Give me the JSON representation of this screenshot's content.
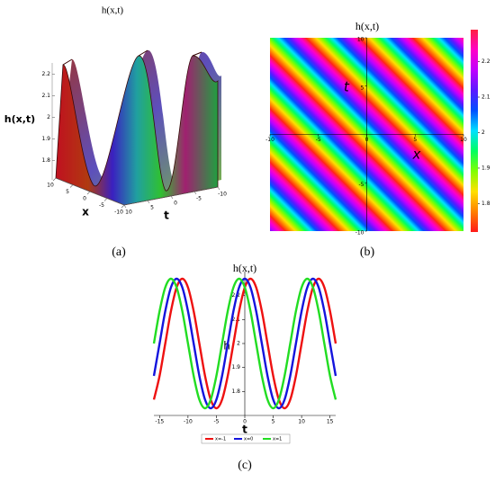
{
  "panel_labels": [
    "(a)",
    "(b)",
    "(c)"
  ],
  "chart_data": [
    {
      "type": "surface3d",
      "title": "h(x,t)",
      "xlabel": "x",
      "ylabel": "t",
      "zlabel": "h(x,t)",
      "xlim": [
        -10,
        10
      ],
      "ylim": [
        -10,
        10
      ],
      "zlim": [
        1.72,
        2.28
      ],
      "xticks": [
        10,
        5,
        0,
        -5,
        -10
      ],
      "yticks": [
        10,
        5,
        0,
        -5,
        -10
      ],
      "zticks": [
        1.8,
        1.9,
        2,
        2.1,
        2.2
      ]
    },
    {
      "type": "heatmap",
      "title": "h(x,t)",
      "xlabel": "x",
      "ylabel": "t",
      "xlim": [
        -10,
        10
      ],
      "ylim": [
        -10,
        10
      ],
      "xticks": [
        -10,
        -5,
        0,
        5,
        10
      ],
      "yticks": [
        10,
        5,
        -5,
        -10
      ],
      "clim": [
        1.72,
        2.29
      ],
      "cticks": [
        1.8,
        1.9,
        2,
        2.1,
        2.2
      ],
      "colorscale": [
        "#ff1a1a",
        "#ff8000",
        "#ffe000",
        "#80ff00",
        "#00ff60",
        "#00e0ff",
        "#0050ff",
        "#5a1aff",
        "#c000ff",
        "#ff00c8",
        "#ff2040"
      ]
    },
    {
      "type": "line",
      "title": "h(x,t)",
      "xlabel": "t",
      "ylabel": "h",
      "xlim": [
        -16,
        16
      ],
      "ylim": [
        1.7,
        2.3
      ],
      "xticks": [
        -15,
        -10,
        -5,
        0,
        5,
        10,
        15
      ],
      "yticks": [
        1.8,
        1.9,
        2,
        2.1,
        2.2
      ],
      "x": [
        -16,
        -15,
        -14,
        -13,
        -12,
        -11,
        -10,
        -9,
        -8,
        -7,
        -6,
        -5,
        -4,
        -3,
        -2,
        -1,
        0,
        1,
        2,
        3,
        4,
        5,
        6,
        7,
        8,
        9,
        10,
        11,
        12,
        13,
        14,
        15,
        16
      ],
      "series": [
        {
          "name": "x=-1",
          "color": "#ee1111",
          "values": [
            1.766,
            1.865,
            2,
            2.135,
            2.234,
            2.27,
            2.234,
            2.135,
            2,
            1.865,
            1.766,
            1.73,
            1.766,
            1.865,
            2,
            2.135,
            2.234,
            2.27,
            2.234,
            2.135,
            2,
            1.865,
            1.766,
            1.73,
            1.766,
            1.865,
            2,
            2.135,
            2.234,
            2.27,
            2.234,
            2.135,
            2
          ]
        },
        {
          "name": "x=0",
          "color": "#1414dd",
          "values": [
            1.865,
            2,
            2.135,
            2.234,
            2.27,
            2.234,
            2.135,
            2,
            1.865,
            1.766,
            1.73,
            1.766,
            1.865,
            2,
            2.135,
            2.234,
            2.27,
            2.234,
            2.135,
            2,
            1.865,
            1.766,
            1.73,
            1.766,
            1.865,
            2,
            2.135,
            2.234,
            2.27,
            2.234,
            2.135,
            2,
            1.865
          ]
        },
        {
          "name": "x=1",
          "color": "#22dd22",
          "values": [
            2,
            2.135,
            2.234,
            2.27,
            2.234,
            2.135,
            2,
            1.865,
            1.766,
            1.73,
            1.766,
            1.865,
            2,
            2.135,
            2.234,
            2.27,
            2.234,
            2.135,
            2,
            1.865,
            1.766,
            1.73,
            1.766,
            1.865,
            2,
            2.135,
            2.234,
            2.27,
            2.234,
            2.135,
            2,
            1.865,
            1.766
          ]
        }
      ]
    }
  ]
}
